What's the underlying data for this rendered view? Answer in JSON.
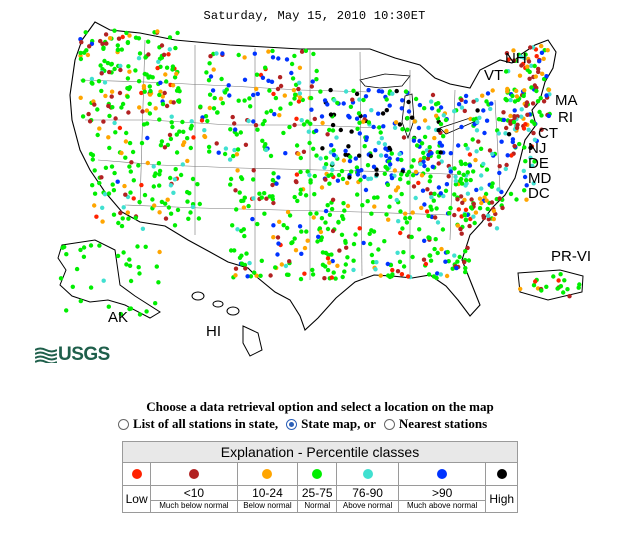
{
  "header": {
    "datetime": "Saturday, May 15, 2010 10:30ET"
  },
  "map": {
    "state_labels": [
      "NH",
      "VT",
      "MA",
      "RI",
      "CT",
      "NJ",
      "DE",
      "MD",
      "DC",
      "PR-VI",
      "AK",
      "HI"
    ],
    "logo_text": "USGS"
  },
  "retrieval": {
    "instruction": "Choose a data retrieval option and select a location on the map",
    "options": [
      {
        "label": "List of all stations in state,",
        "selected": false
      },
      {
        "label": "State map, or",
        "selected": true
      },
      {
        "label": "Nearest stations",
        "selected": false
      }
    ]
  },
  "explanation": {
    "title": "Explanation - Percentile classes",
    "low_label": "Low",
    "high_label": "High",
    "classes": [
      {
        "color": "#ff2200",
        "range": "",
        "desc": ""
      },
      {
        "color": "#b22222",
        "range": "<10",
        "desc": "Much below normal"
      },
      {
        "color": "#ffa500",
        "range": "10-24",
        "desc": "Below normal"
      },
      {
        "color": "#00ee00",
        "range": "25-75",
        "desc": "Normal"
      },
      {
        "color": "#40e0d0",
        "range": "76-90",
        "desc": "Above normal"
      },
      {
        "color": "#0033ff",
        "range": ">90",
        "desc": "Much above normal"
      },
      {
        "color": "#000000",
        "range": "",
        "desc": ""
      }
    ]
  }
}
